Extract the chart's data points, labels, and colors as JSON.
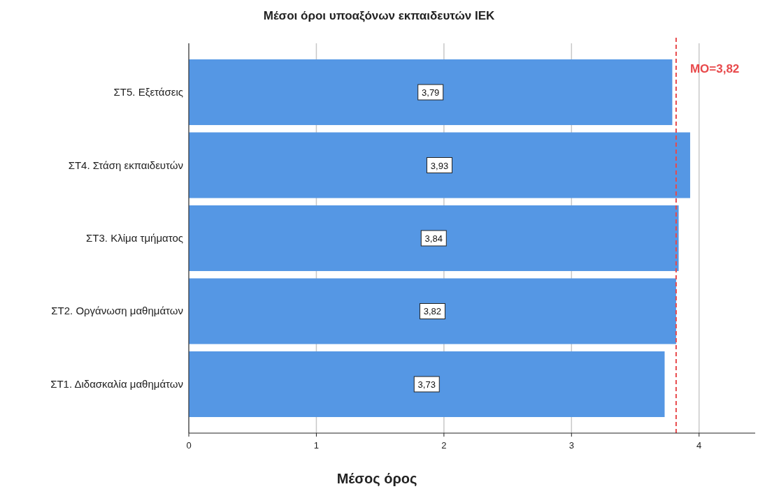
{
  "chart_data": {
    "type": "bar",
    "orientation": "horizontal",
    "title": "Μέσοι όροι υποαξόνων εκπαιδευτών ΙΕΚ",
    "xlabel": "Μέσος όρος",
    "categories": [
      "ΣΤ5. Εξετάσεις",
      "ΣΤ4. Στάση εκπαιδευτών",
      "ΣΤ3. Κλίμα τμήματος",
      "ΣΤ2. Οργάνωση μαθημάτων",
      "ΣΤ1. Διδασκαλία μαθημάτων"
    ],
    "values": [
      3.79,
      3.93,
      3.84,
      3.82,
      3.73
    ],
    "value_labels": [
      "3,79",
      "3,93",
      "3,84",
      "3,82",
      "3,73"
    ],
    "color": "#5597e4",
    "xlim": [
      0,
      4.44
    ],
    "xticks": [
      0,
      1,
      2,
      3,
      4
    ],
    "grid": "x",
    "ref_lines": [
      {
        "axis": "x",
        "value": 3.82,
        "label": "ΜΟ=3,82",
        "color": "#e8494b",
        "line_style": "dashed"
      }
    ]
  }
}
